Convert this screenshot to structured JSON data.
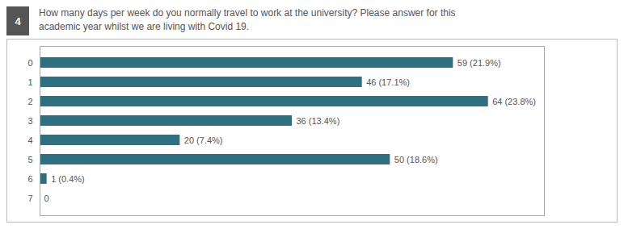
{
  "chart_data": {
    "type": "bar",
    "orientation": "horizontal",
    "title": "How many days per week do you normally travel to work at the university? Please answer for this",
    "subtitle": "academic year whilst we are living with Covid 19.",
    "annotations": [
      "4"
    ],
    "categories": [
      "0",
      "1",
      "2",
      "3",
      "4",
      "5",
      "6",
      "7"
    ],
    "values": [
      59,
      46,
      64,
      36,
      20,
      50,
      1,
      0
    ],
    "value_labels": [
      "59 (21.9%)",
      "46 (17.1%)",
      "64 (23.8%)",
      "36 (13.4%)",
      "20 (7.4%)",
      "50 (18.6%)",
      "1 (0.4%)",
      "0"
    ],
    "data_labels": true,
    "color": "#2e6f80",
    "xlim": [
      0,
      72
    ],
    "tick_labels": "y",
    "grid": false
  }
}
